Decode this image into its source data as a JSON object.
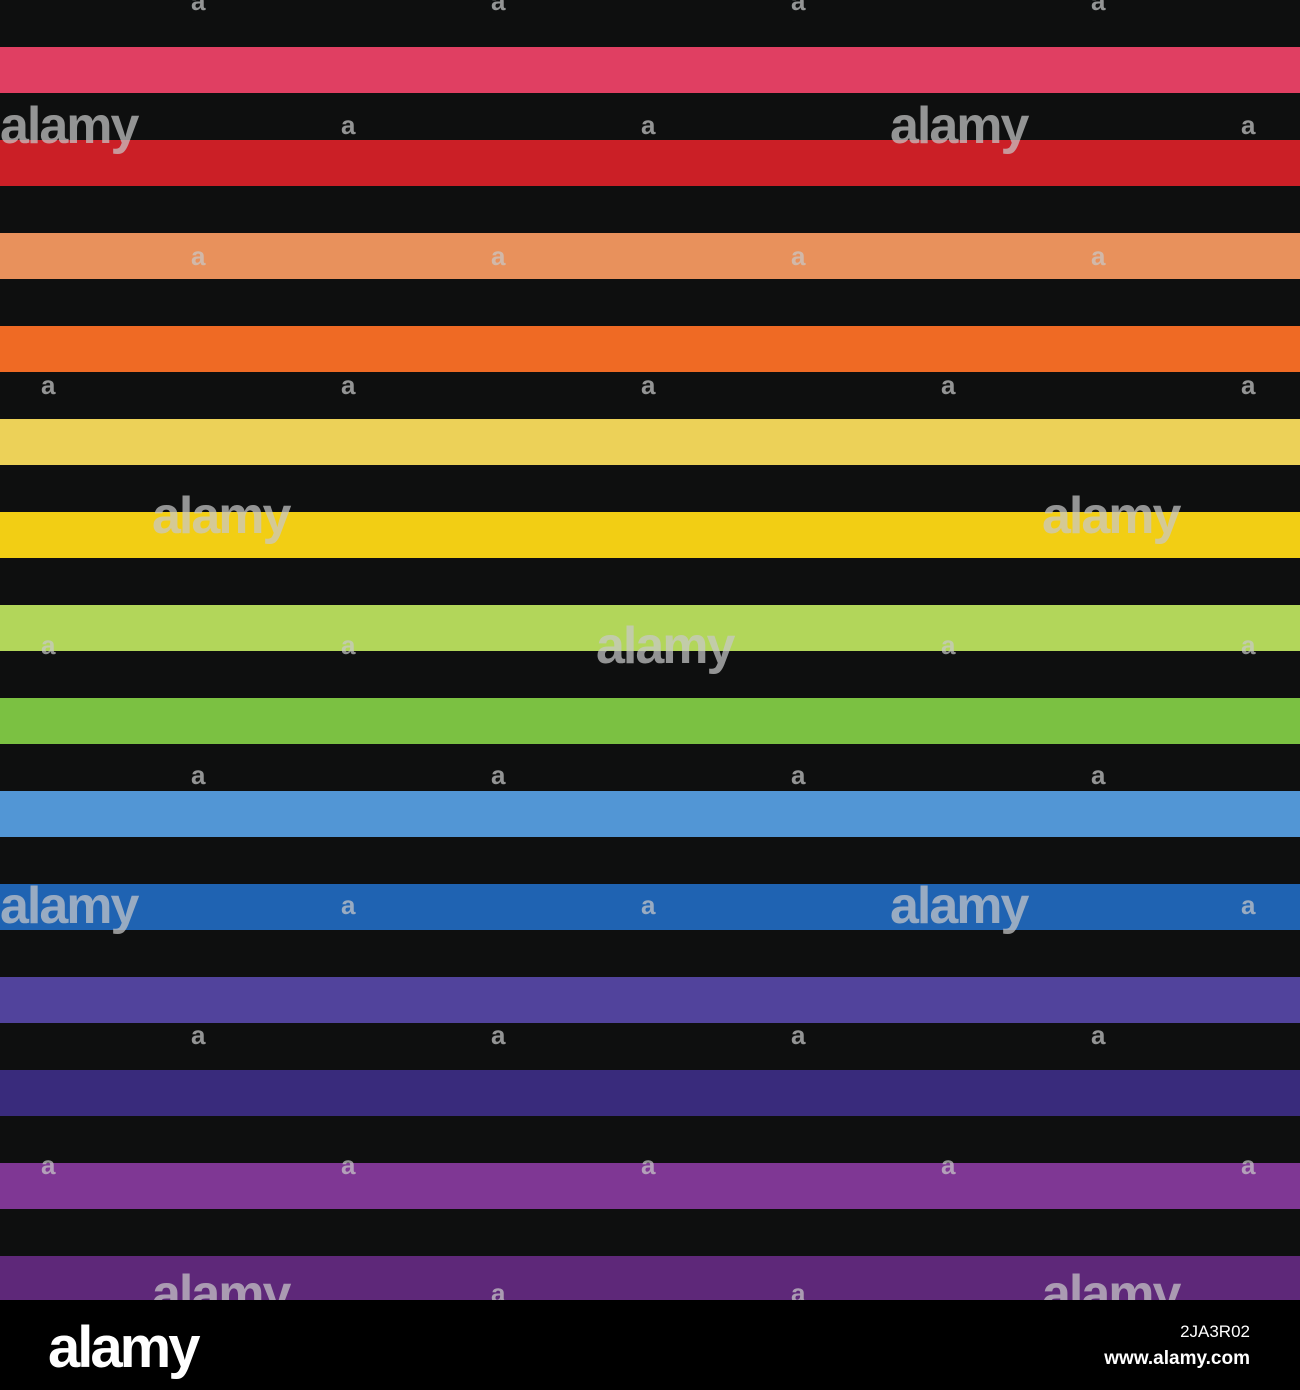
{
  "pattern": {
    "background_color": "#0e0f0f",
    "stripe_colors": [
      "#e03f62",
      "#cb1f26",
      "#e8915c",
      "#ef6a24",
      "#ecd158",
      "#f2ce14",
      "#b2d65a",
      "#7bc142",
      "#5296d5",
      "#1f63b2",
      "#51439c",
      "#392b7c",
      "#7f3794",
      "#5e2879"
    ],
    "watermark_text": "alamy",
    "watermark_letter": "a"
  },
  "footer": {
    "logo": "alamy",
    "image_id": "2JA3R02",
    "url": "www.alamy.com"
  }
}
